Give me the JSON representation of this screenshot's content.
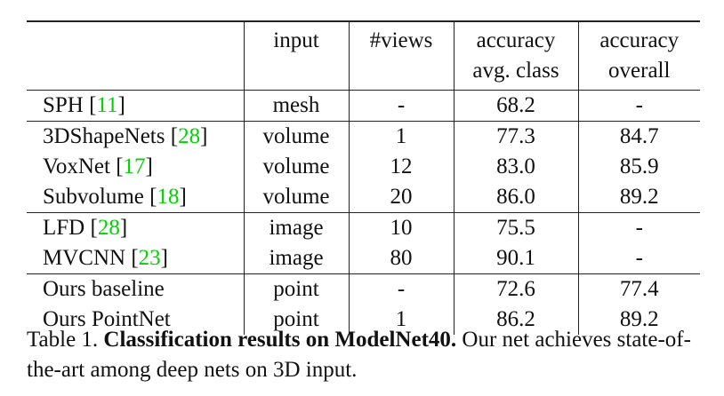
{
  "table": {
    "headers": [
      {
        "key": "method",
        "lines": [
          "",
          ""
        ]
      },
      {
        "key": "input",
        "lines": [
          "input",
          ""
        ]
      },
      {
        "key": "views",
        "lines": [
          "#views",
          ""
        ]
      },
      {
        "key": "avg",
        "lines": [
          "accuracy",
          "avg. class"
        ]
      },
      {
        "key": "overall",
        "lines": [
          "accuracy",
          "overall"
        ]
      }
    ],
    "groups": [
      [
        {
          "method": "SPH",
          "cite": "11",
          "input": "mesh",
          "views": "-",
          "avg": "68.2",
          "overall": "-",
          "bold": []
        }
      ],
      [
        {
          "method": "3DShapeNets",
          "cite": "28",
          "input": "volume",
          "views": "1",
          "avg": "77.3",
          "overall": "84.7",
          "bold": []
        },
        {
          "method": "VoxNet",
          "cite": "17",
          "input": "volume",
          "views": "12",
          "avg": "83.0",
          "overall": "85.9",
          "bold": []
        },
        {
          "method": "Subvolume",
          "cite": "18",
          "input": "volume",
          "views": "20",
          "avg": "86.0",
          "overall": "89.2",
          "bold": [
            "overall"
          ]
        }
      ],
      [
        {
          "method": "LFD",
          "cite": "28",
          "input": "image",
          "views": "10",
          "avg": "75.5",
          "overall": "-",
          "bold": []
        },
        {
          "method": "MVCNN",
          "cite": "23",
          "input": "image",
          "views": "80",
          "avg": "90.1",
          "overall": "-",
          "bold": [
            "avg"
          ]
        }
      ],
      [
        {
          "method": "Ours baseline",
          "cite": "",
          "input": "point",
          "views": "-",
          "avg": "72.6",
          "overall": "77.4",
          "bold": []
        },
        {
          "method": "Ours PointNet",
          "cite": "",
          "input": "point",
          "views": "1",
          "avg": "86.2",
          "overall": "89.2",
          "bold": [
            "overall"
          ]
        }
      ]
    ]
  },
  "caption": {
    "label": "Table 1.",
    "title": "Classification results on ModelNet40.",
    "text": "Our net achieves state-of-the-art among deep nets on 3D input."
  },
  "colors": {
    "citation": "#00d400",
    "rule": "#222222"
  }
}
